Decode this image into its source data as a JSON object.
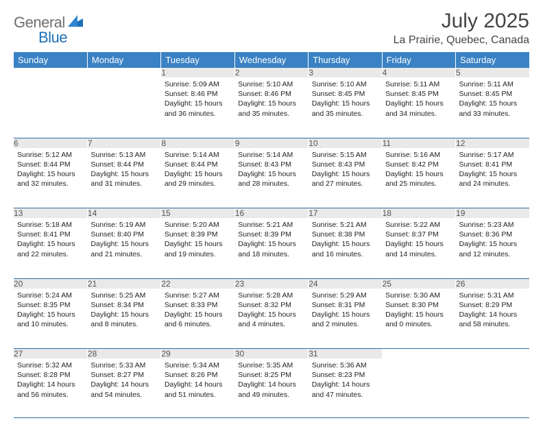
{
  "brand": {
    "part1": "General",
    "part2": "Blue"
  },
  "title": "July 2025",
  "location": "La Prairie, Quebec, Canada",
  "colors": {
    "header_bg": "#3a82c4",
    "header_fg": "#ffffff",
    "daynum_bg": "#e9e9e9",
    "rule": "#2f6aa3",
    "brand_gray": "#6e6e6e",
    "brand_blue": "#1e6fb8"
  },
  "weekdays": [
    "Sunday",
    "Monday",
    "Tuesday",
    "Wednesday",
    "Thursday",
    "Friday",
    "Saturday"
  ],
  "weeks": [
    [
      null,
      null,
      {
        "n": "1",
        "sr": "5:09 AM",
        "ss": "8:46 PM",
        "dl": "15 hours and 36 minutes."
      },
      {
        "n": "2",
        "sr": "5:10 AM",
        "ss": "8:46 PM",
        "dl": "15 hours and 35 minutes."
      },
      {
        "n": "3",
        "sr": "5:10 AM",
        "ss": "8:45 PM",
        "dl": "15 hours and 35 minutes."
      },
      {
        "n": "4",
        "sr": "5:11 AM",
        "ss": "8:45 PM",
        "dl": "15 hours and 34 minutes."
      },
      {
        "n": "5",
        "sr": "5:11 AM",
        "ss": "8:45 PM",
        "dl": "15 hours and 33 minutes."
      }
    ],
    [
      {
        "n": "6",
        "sr": "5:12 AM",
        "ss": "8:44 PM",
        "dl": "15 hours and 32 minutes."
      },
      {
        "n": "7",
        "sr": "5:13 AM",
        "ss": "8:44 PM",
        "dl": "15 hours and 31 minutes."
      },
      {
        "n": "8",
        "sr": "5:14 AM",
        "ss": "8:44 PM",
        "dl": "15 hours and 29 minutes."
      },
      {
        "n": "9",
        "sr": "5:14 AM",
        "ss": "8:43 PM",
        "dl": "15 hours and 28 minutes."
      },
      {
        "n": "10",
        "sr": "5:15 AM",
        "ss": "8:43 PM",
        "dl": "15 hours and 27 minutes."
      },
      {
        "n": "11",
        "sr": "5:16 AM",
        "ss": "8:42 PM",
        "dl": "15 hours and 25 minutes."
      },
      {
        "n": "12",
        "sr": "5:17 AM",
        "ss": "8:41 PM",
        "dl": "15 hours and 24 minutes."
      }
    ],
    [
      {
        "n": "13",
        "sr": "5:18 AM",
        "ss": "8:41 PM",
        "dl": "15 hours and 22 minutes."
      },
      {
        "n": "14",
        "sr": "5:19 AM",
        "ss": "8:40 PM",
        "dl": "15 hours and 21 minutes."
      },
      {
        "n": "15",
        "sr": "5:20 AM",
        "ss": "8:39 PM",
        "dl": "15 hours and 19 minutes."
      },
      {
        "n": "16",
        "sr": "5:21 AM",
        "ss": "8:39 PM",
        "dl": "15 hours and 18 minutes."
      },
      {
        "n": "17",
        "sr": "5:21 AM",
        "ss": "8:38 PM",
        "dl": "15 hours and 16 minutes."
      },
      {
        "n": "18",
        "sr": "5:22 AM",
        "ss": "8:37 PM",
        "dl": "15 hours and 14 minutes."
      },
      {
        "n": "19",
        "sr": "5:23 AM",
        "ss": "8:36 PM",
        "dl": "15 hours and 12 minutes."
      }
    ],
    [
      {
        "n": "20",
        "sr": "5:24 AM",
        "ss": "8:35 PM",
        "dl": "15 hours and 10 minutes."
      },
      {
        "n": "21",
        "sr": "5:25 AM",
        "ss": "8:34 PM",
        "dl": "15 hours and 8 minutes."
      },
      {
        "n": "22",
        "sr": "5:27 AM",
        "ss": "8:33 PM",
        "dl": "15 hours and 6 minutes."
      },
      {
        "n": "23",
        "sr": "5:28 AM",
        "ss": "8:32 PM",
        "dl": "15 hours and 4 minutes."
      },
      {
        "n": "24",
        "sr": "5:29 AM",
        "ss": "8:31 PM",
        "dl": "15 hours and 2 minutes."
      },
      {
        "n": "25",
        "sr": "5:30 AM",
        "ss": "8:30 PM",
        "dl": "15 hours and 0 minutes."
      },
      {
        "n": "26",
        "sr": "5:31 AM",
        "ss": "8:29 PM",
        "dl": "14 hours and 58 minutes."
      }
    ],
    [
      {
        "n": "27",
        "sr": "5:32 AM",
        "ss": "8:28 PM",
        "dl": "14 hours and 56 minutes."
      },
      {
        "n": "28",
        "sr": "5:33 AM",
        "ss": "8:27 PM",
        "dl": "14 hours and 54 minutes."
      },
      {
        "n": "29",
        "sr": "5:34 AM",
        "ss": "8:26 PM",
        "dl": "14 hours and 51 minutes."
      },
      {
        "n": "30",
        "sr": "5:35 AM",
        "ss": "8:25 PM",
        "dl": "14 hours and 49 minutes."
      },
      {
        "n": "31",
        "sr": "5:36 AM",
        "ss": "8:23 PM",
        "dl": "14 hours and 47 minutes."
      },
      null,
      null
    ]
  ],
  "labels": {
    "sunrise": "Sunrise: ",
    "sunset": "Sunset: ",
    "daylight": "Daylight: "
  }
}
